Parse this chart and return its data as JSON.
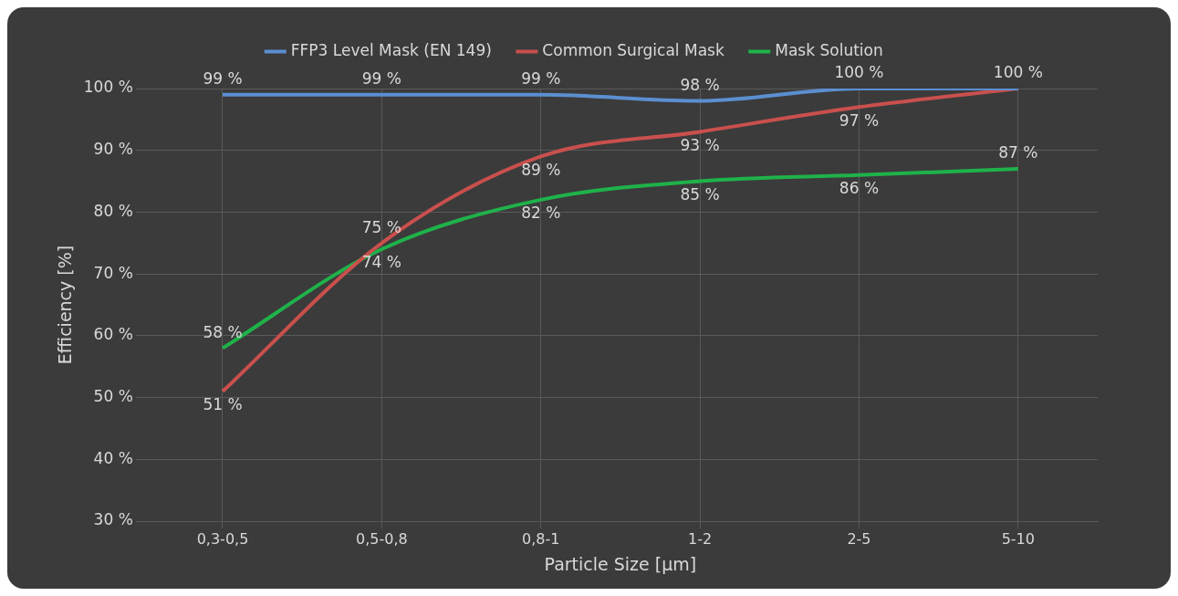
{
  "chart_data": {
    "type": "line",
    "xlabel": "Particle Size [µm]",
    "ylabel": "Efficiency [%]",
    "categories": [
      "0,3-0,5",
      "0,5-0,8",
      "0,8-1",
      "1-2",
      "2-5",
      "5-10"
    ],
    "series": [
      {
        "name": "FFP3 Level Mask (EN 149)",
        "color": "#5b8fd0",
        "values": [
          99,
          99,
          99,
          98,
          100,
          100
        ],
        "value_labels": [
          "99 %",
          "99 %",
          "99 %",
          "98 %",
          "100 %",
          null
        ]
      },
      {
        "name": "Common Surgical Mask",
        "color": "#c9504d",
        "values": [
          51,
          75,
          89,
          93,
          97,
          100
        ],
        "value_labels": [
          "51 %",
          "75 %",
          "89 %",
          "93 %",
          "97 %",
          "100 %"
        ]
      },
      {
        "name": "Mask Solution",
        "color": "#1fb24a",
        "values": [
          58,
          74,
          82,
          85,
          86,
          87
        ],
        "value_labels": [
          "58 %",
          "74 %",
          "82 %",
          "85 %",
          "86 %",
          "87 %"
        ]
      }
    ],
    "ylim": [
      30,
      100
    ],
    "yticks": [
      {
        "value": 30,
        "label": "30 %"
      },
      {
        "value": 40,
        "label": "40 %"
      },
      {
        "value": 50,
        "label": "50 %"
      },
      {
        "value": 60,
        "label": "60 %"
      },
      {
        "value": 70,
        "label": "70 %"
      },
      {
        "value": 80,
        "label": "80 %"
      },
      {
        "value": 90,
        "label": "90 %"
      },
      {
        "value": 100,
        "label": "100 %"
      }
    ],
    "grid": true,
    "legend": "top",
    "marker": "none",
    "line_style": "solid"
  }
}
